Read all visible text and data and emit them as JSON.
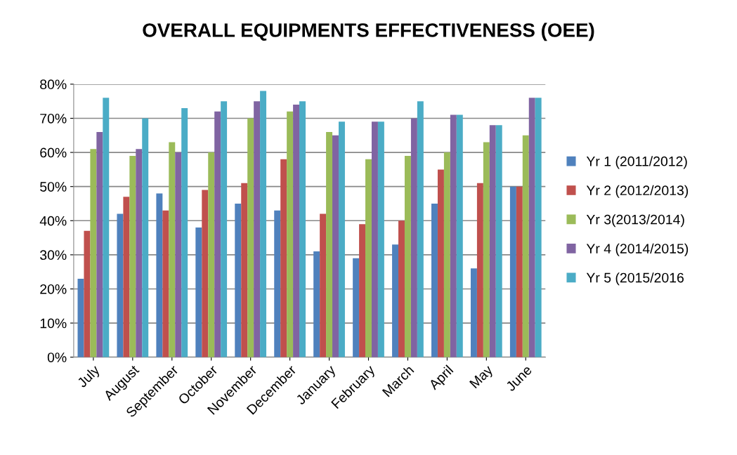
{
  "chart_data": {
    "type": "bar",
    "title": "OVERALL EQUIPMENTS EFFECTIVENESS (OEE)",
    "categories": [
      "July",
      "August",
      "September",
      "October",
      "November",
      "December",
      "January",
      "February",
      "March",
      "April",
      "May",
      "June"
    ],
    "series": [
      {
        "name": "Yr 1 (2011/2012)",
        "color": "#4f81bd",
        "values": [
          23,
          42,
          48,
          38,
          45,
          43,
          31,
          29,
          33,
          45,
          26,
          50
        ]
      },
      {
        "name": "Yr 2 (2012/2013)",
        "color": "#c0504d",
        "values": [
          37,
          47,
          43,
          49,
          51,
          58,
          42,
          39,
          40,
          55,
          51,
          50
        ]
      },
      {
        "name": "Yr 3(2013/2014)",
        "color": "#9bbb59",
        "values": [
          61,
          59,
          63,
          60,
          70,
          72,
          66,
          58,
          59,
          60,
          63,
          65
        ]
      },
      {
        "name": "Yr 4 (2014/2015)",
        "color": "#8064a2",
        "values": [
          66,
          61,
          60,
          72,
          75,
          74,
          65,
          69,
          70,
          71,
          68,
          76
        ]
      },
      {
        "name": "Yr 5 (2015/2016",
        "color": "#4bacc6",
        "values": [
          76,
          70,
          73,
          75,
          78,
          75,
          69,
          69,
          75,
          71,
          68,
          76
        ]
      }
    ],
    "ylim": [
      0,
      80
    ],
    "yticks": [
      {
        "value": 0,
        "label": "0%"
      },
      {
        "value": 10,
        "label": "10%"
      },
      {
        "value": 20,
        "label": "20%"
      },
      {
        "value": 30,
        "label": "30%"
      },
      {
        "value": 40,
        "label": "40%"
      },
      {
        "value": 50,
        "label": "50%"
      },
      {
        "value": 60,
        "label": "60%"
      },
      {
        "value": 70,
        "label": "70%"
      },
      {
        "value": 80,
        "label": "80%"
      }
    ],
    "grid": "y",
    "legend": "right"
  }
}
